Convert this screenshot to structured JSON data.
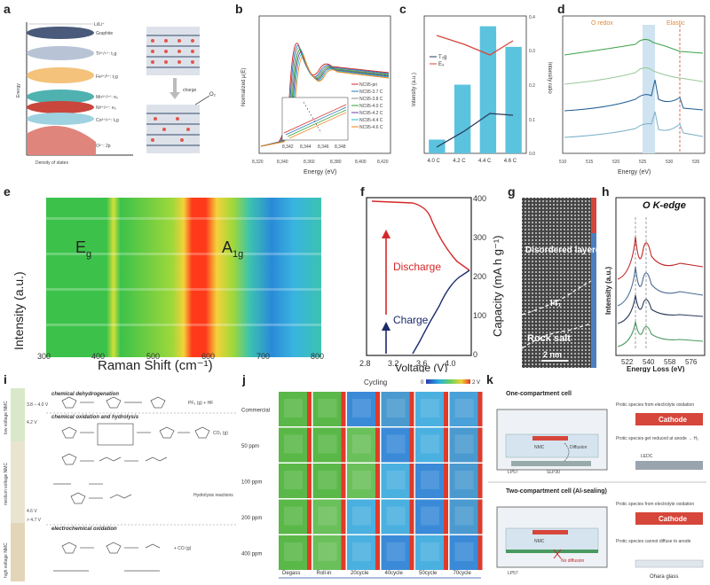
{
  "labels": {
    "a": "a",
    "b": "b",
    "c": "c",
    "d": "d",
    "e": "e",
    "f": "f",
    "g": "g",
    "h": "h",
    "i": "i",
    "j": "j",
    "k": "k"
  },
  "panel_a": {
    "levels": [
      {
        "label": "Li/Li⁺",
        "color": "#ffffff"
      },
      {
        "label": "Graphite",
        "color": "#4a5a7a"
      },
      {
        "label": "Ti³⁺/⁴⁺: t₂g",
        "color": "#b8c4d6"
      },
      {
        "label": "Fe²⁺/³⁺: t₂g",
        "color": "#f4c27a"
      },
      {
        "label": "Mn³⁺/⁴⁺: e₉",
        "color": "#4fb2b0"
      },
      {
        "label": "Ni²⁺/⁴⁺: e₉",
        "color": "#c9463d"
      },
      {
        "label": "Co³⁺/⁴⁺: t₂g",
        "color": "#9fd2e0"
      },
      {
        "label": "O²⁻: 2p",
        "color": "#e0857c"
      }
    ],
    "ylabel": "Energy",
    "xlabel": "Density of states",
    "charge": "charge",
    "o2": "O₂"
  },
  "panel_b": {
    "ylabel": "Normalized μ(E)",
    "xlabel": "Energy (eV)",
    "xticks": [
      "8,320",
      "8,340",
      "8,360",
      "8,380",
      "8,400",
      "8,420"
    ],
    "inset_ticks": [
      "8,342",
      "8,344",
      "8,346",
      "8,348"
    ],
    "legend": [
      "NC95-pri",
      "NC95-3.7 C",
      "NC95-3.8 C",
      "NC95-4.0 C",
      "NC95-4.2 C",
      "NC95-4.4 C",
      "NC95-4.6 C"
    ],
    "colors": [
      "#d62728",
      "#1f77b4",
      "#8c8c8c",
      "#2ca02c",
      "#6b3fa0",
      "#17becf",
      "#ff7f0e"
    ]
  },
  "panel_c": {
    "ylabel": "Intensity (a.u.)",
    "ylabel_right": "Intensity ratio",
    "legend": [
      "T₂g",
      "E₉"
    ],
    "rticks": [
      "0.0",
      "0.1",
      "0.2",
      "0.3",
      "0.4"
    ]
  },
  "chart_data": {
    "type": "bar",
    "categories": [
      "4.0 C",
      "4.2 C",
      "4.4 C",
      "4.6 C"
    ],
    "series": [
      {
        "name": "",
        "values": [
          0.04,
          0.2,
          0.37,
          0.31
        ]
      }
    ],
    "ylim": [
      0,
      0.4
    ]
  },
  "panel_d": {
    "xlabel": "Energy (eV)",
    "xticks": [
      "510",
      "515",
      "520",
      "525",
      "530",
      "535"
    ],
    "o_redox": "O redox",
    "elastic": "Elastic"
  },
  "panel_e": {
    "ylabel": "Intensity (a.u.)",
    "xlabel": "Raman Shift (cm⁻¹)",
    "xticks": [
      "300",
      "400",
      "500",
      "600",
      "700",
      "800"
    ],
    "eg": "E",
    "eg_sub": "g",
    "a1g": "A",
    "a1g_sub": "1g"
  },
  "panel_f": {
    "discharge": "Discharge",
    "charge": "Charge",
    "xlabel": "Voltage (V)",
    "ylabel": "Capacity (mA h g⁻¹)",
    "xticks": [
      "2.8",
      "3.2",
      "3.6",
      "4.0"
    ],
    "yticks": [
      "0",
      "100",
      "200",
      "300",
      "400"
    ]
  },
  "panel_g": {
    "layered": "Disordered layered",
    "i41": "I4₁",
    "rocksalt": "Rock salt",
    "scale": "2 nm"
  },
  "panel_h": {
    "title": "O K-edge",
    "ylabel": "Intensity (a.u.)",
    "xlabel": "Energy Loss (eV)",
    "xticks": [
      "522",
      "540",
      "558",
      "576"
    ]
  },
  "panel_i": {
    "sections": [
      "chemical dehydrogenation",
      "chemical oxidation and hydrolysis",
      "electrochemical oxidation"
    ],
    "voltages": [
      "3.8 – 4.0 V",
      "4.2 V",
      "4.6 V",
      "> 4.7 V"
    ],
    "side": [
      "low voltage NMC",
      "medium voltage NMC",
      "high voltage NMC"
    ],
    "notes": [
      "PF₅ (g) + HF",
      "CO₂ (g)",
      "Hydrolysis reactions",
      "+ CO (g)"
    ]
  },
  "panel_j": {
    "title": "Cycling",
    "scale_min": "0",
    "scale_max": "2 V",
    "rows": [
      "Commercial",
      "50 ppm",
      "100 ppm",
      "200 ppm",
      "400 ppm"
    ],
    "cols": [
      "Degass",
      "Roll-in",
      "20cycle",
      "40cycle",
      "50cycle",
      "70cycle"
    ]
  },
  "panel_k": {
    "title1": "One-compartment cell",
    "title2": "Two-compartment cell (Al-sealing)",
    "notes": [
      "Protic species from electrolyte oxidation",
      "Protic species get reduced at anode → H₂",
      "Protic species from electrolyte oxidation",
      "Protic species cannot diffuse to anode"
    ],
    "cathode": "Cathode",
    "nmc": "NMC",
    "diffusion": "Diffusion",
    "no_diffusion": "No diffusion",
    "lp57": "LP57",
    "slp30": "SLP30",
    "ohara": "Ohara glass",
    "lebc": "LEDC"
  }
}
